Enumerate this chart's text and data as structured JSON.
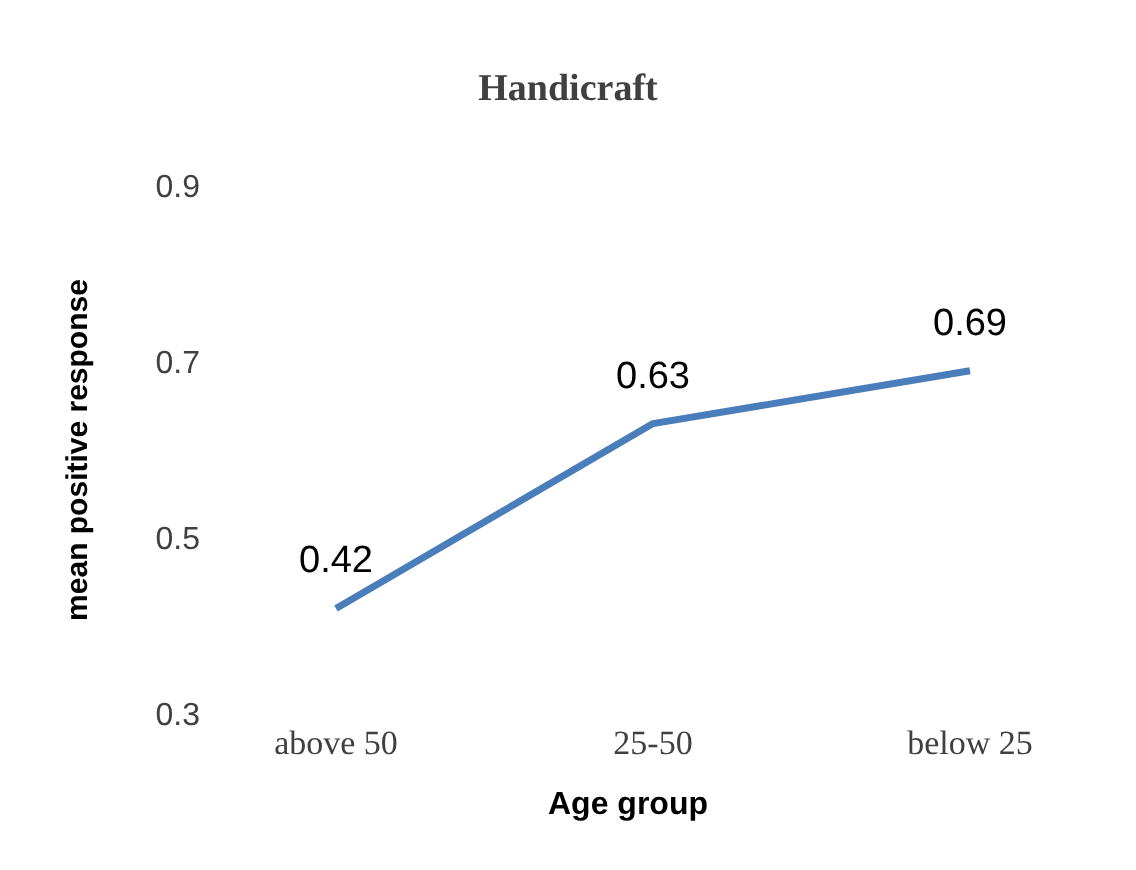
{
  "chart_data": {
    "type": "line",
    "title": "Handicraft",
    "xlabel": "Age group",
    "ylabel": "mean positive response",
    "categories": [
      "above 50",
      "25-50",
      "below 25"
    ],
    "series": [
      {
        "color": "#4a7ebb",
        "values": [
          0.42,
          0.63,
          0.69
        ]
      }
    ],
    "ylim": [
      0.3,
      0.9
    ],
    "yticks": [
      0.3,
      0.5,
      0.7,
      0.9
    ],
    "data_labels": true,
    "grid": false,
    "legend": false,
    "marker": "none",
    "line_style": "solid"
  }
}
